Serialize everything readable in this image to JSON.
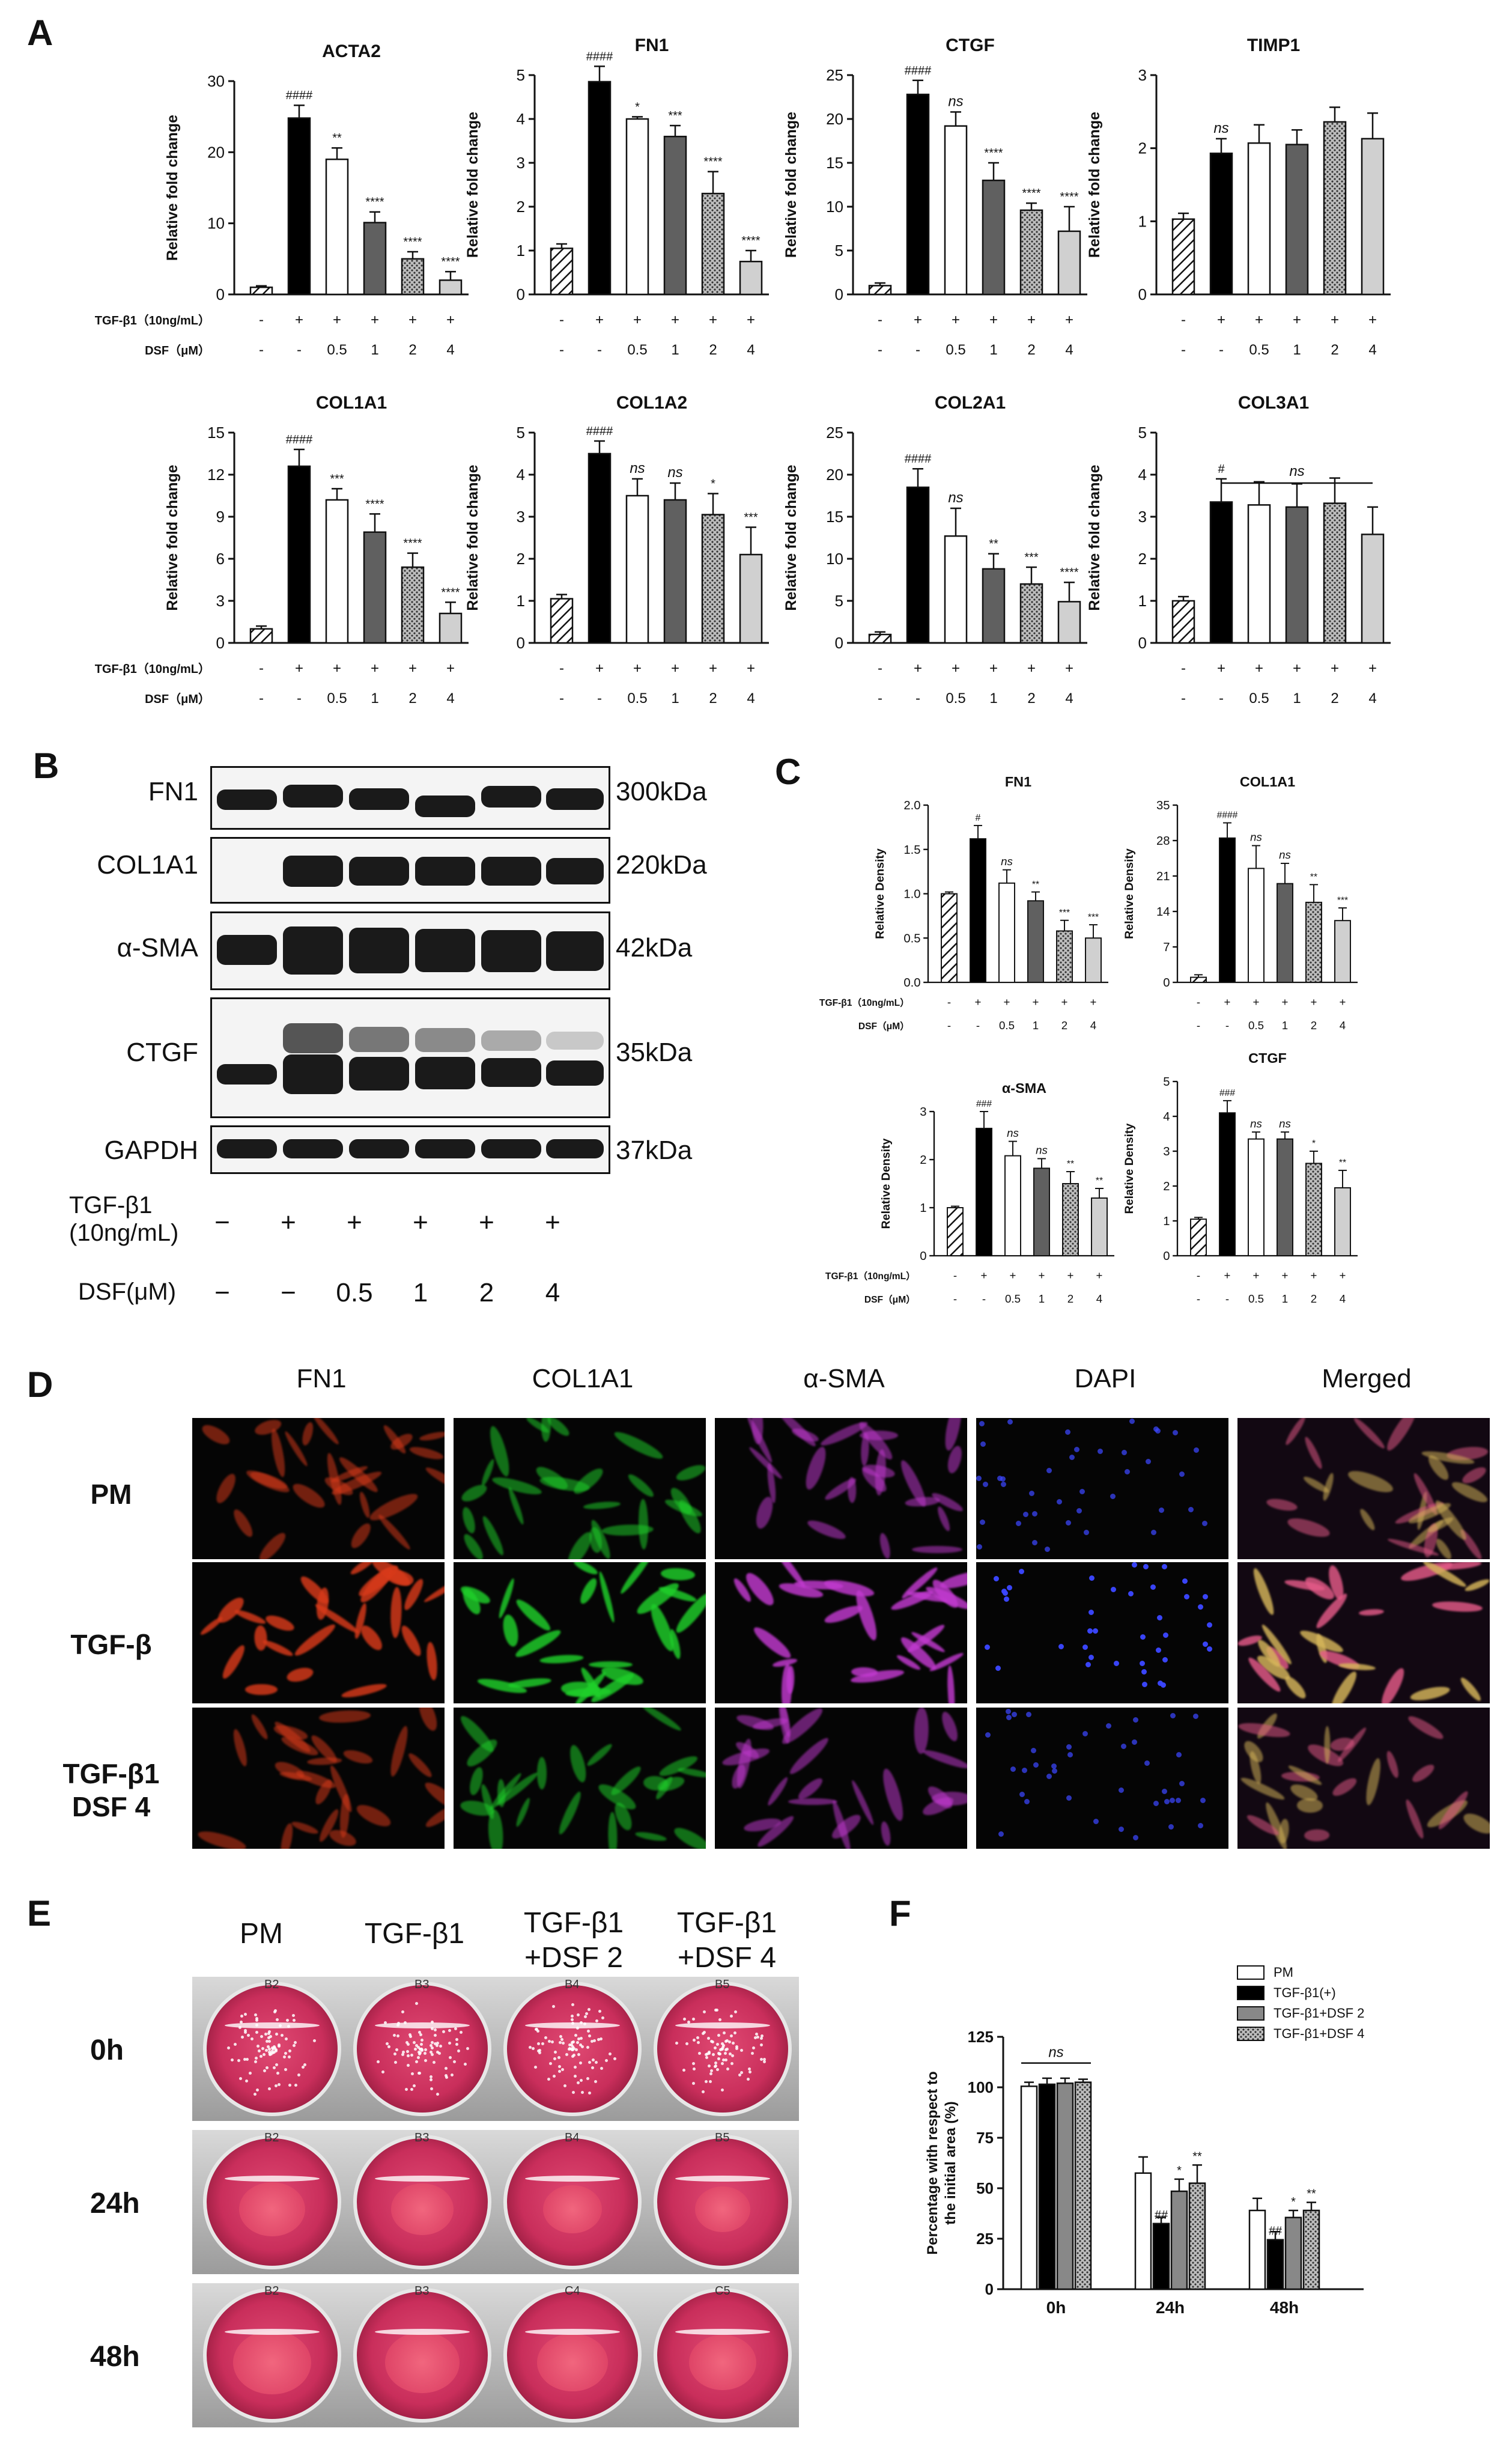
{
  "panel_letters": {
    "A": "A",
    "B": "B",
    "C": "C",
    "D": "D",
    "E": "E",
    "F": "F"
  },
  "colors": {
    "pm": "hatched-white",
    "tgf": "#000000",
    "dsf05": "#ffffff",
    "dsf1": "#606060",
    "dsf2": "dotted-grey",
    "dsf4": "#d0d0d0"
  },
  "treatment_rows_A": {
    "tgf_label": "TGF-β1（10ng/mL）",
    "dsf_label": "DSF（μM）",
    "tgf_values": [
      "-",
      "+",
      "+",
      "+",
      "+",
      "+"
    ],
    "dsf_values": [
      "-",
      "-",
      "0.5",
      "1",
      "2",
      "4"
    ]
  },
  "treatment_rows_C": {
    "tgf_label": "TGF-β1（10ng/mL）",
    "dsf_label": "DSF（μM）",
    "tgf_values": [
      "-",
      "+",
      "+",
      "+",
      "+",
      "+"
    ],
    "dsf_values": [
      "-",
      "-",
      "0.5",
      "1",
      "2",
      "4"
    ]
  },
  "chart_data": [
    {
      "panel": "A",
      "type": "bar",
      "title": "ACTA2",
      "ylabel": "Relative fold change",
      "ylim": [
        0,
        30
      ],
      "yticks": [
        0,
        10,
        20,
        30
      ],
      "values": [
        1.0,
        24.8,
        19.0,
        10.1,
        5.0,
        2.0
      ],
      "errors": [
        0.2,
        1.8,
        1.6,
        1.5,
        1.0,
        1.2
      ],
      "annotations": [
        "",
        "####",
        "**",
        "****",
        "****",
        "****"
      ]
    },
    {
      "panel": "A",
      "type": "bar",
      "title": "FN1",
      "ylabel": "Relative fold change",
      "ylim": [
        0,
        5
      ],
      "yticks": [
        0,
        1,
        2,
        3,
        4,
        5
      ],
      "values": [
        1.05,
        4.85,
        4.0,
        3.6,
        2.3,
        0.75
      ],
      "errors": [
        0.1,
        0.35,
        0.05,
        0.25,
        0.5,
        0.25
      ],
      "annotations": [
        "",
        "####",
        "*",
        "***",
        "****",
        "****"
      ]
    },
    {
      "panel": "A",
      "type": "bar",
      "title": "CTGF",
      "ylabel": "Relative fold change",
      "ylim": [
        0,
        25
      ],
      "yticks": [
        0,
        5,
        10,
        15,
        20,
        25
      ],
      "values": [
        1.0,
        22.8,
        19.2,
        13.0,
        9.6,
        7.2
      ],
      "errors": [
        0.3,
        1.6,
        1.6,
        2.0,
        0.8,
        2.8
      ],
      "annotations": [
        "",
        "####",
        "ns",
        "****",
        "****",
        "****"
      ]
    },
    {
      "panel": "A",
      "type": "bar",
      "title": "TIMP1",
      "ylabel": "Relative fold change",
      "ylim": [
        0,
        3
      ],
      "yticks": [
        0,
        1,
        2,
        3
      ],
      "values": [
        1.03,
        1.93,
        2.07,
        2.05,
        2.36,
        2.13
      ],
      "errors": [
        0.08,
        0.2,
        0.25,
        0.2,
        0.2,
        0.35
      ],
      "annotations": [
        "",
        "ns",
        "",
        "",
        "",
        ""
      ]
    },
    {
      "panel": "A",
      "type": "bar",
      "title": "COL1A1",
      "ylabel": "Relative fold change",
      "ylim": [
        0,
        15
      ],
      "yticks": [
        0,
        3,
        6,
        9,
        12,
        15
      ],
      "values": [
        1.0,
        12.6,
        10.2,
        7.9,
        5.4,
        2.1
      ],
      "errors": [
        0.2,
        1.2,
        0.8,
        1.3,
        1.0,
        0.8
      ],
      "annotations": [
        "",
        "####",
        "***",
        "****",
        "****",
        "****"
      ]
    },
    {
      "panel": "A",
      "type": "bar",
      "title": "COL1A2",
      "ylabel": "Relative fold change",
      "ylim": [
        0,
        5
      ],
      "yticks": [
        0,
        1,
        2,
        3,
        4,
        5
      ],
      "values": [
        1.05,
        4.5,
        3.5,
        3.4,
        3.05,
        2.1
      ],
      "errors": [
        0.1,
        0.3,
        0.4,
        0.4,
        0.5,
        0.65
      ],
      "annotations": [
        "",
        "####",
        "ns",
        "ns",
        "*",
        "***"
      ]
    },
    {
      "panel": "A",
      "type": "bar",
      "title": "COL2A1",
      "ylabel": "Relative fold change",
      "ylim": [
        0,
        25
      ],
      "yticks": [
        0,
        5,
        10,
        15,
        20,
        25
      ],
      "values": [
        1.0,
        18.5,
        12.7,
        8.8,
        7.0,
        4.9
      ],
      "errors": [
        0.3,
        2.2,
        3.3,
        1.8,
        2.0,
        2.3
      ],
      "annotations": [
        "",
        "####",
        "ns",
        "**",
        "***",
        "****"
      ]
    },
    {
      "panel": "A",
      "type": "bar",
      "title": "COL3A1",
      "ylabel": "Relative fold change",
      "ylim": [
        0,
        5
      ],
      "yticks": [
        0,
        1,
        2,
        3,
        4,
        5
      ],
      "values": [
        1.0,
        3.35,
        3.28,
        3.23,
        3.32,
        2.58
      ],
      "errors": [
        0.1,
        0.55,
        0.55,
        0.55,
        0.6,
        0.65
      ],
      "annotations": [
        "",
        "#",
        "",
        "",
        "",
        ""
      ],
      "bracket": "ns"
    },
    {
      "panel": "C",
      "type": "bar",
      "title": "FN1",
      "ylabel": "Relative Density",
      "ylim": [
        0,
        2.0
      ],
      "yticks": [
        0,
        0.5,
        1.0,
        1.5,
        2.0
      ],
      "ytick_labels": [
        "0.0",
        "0.5",
        "1.0",
        "1.5",
        "2.0"
      ],
      "values": [
        1.0,
        1.62,
        1.12,
        0.92,
        0.58,
        0.5
      ],
      "errors": [
        0.02,
        0.15,
        0.15,
        0.1,
        0.12,
        0.15
      ],
      "annotations": [
        "",
        "#",
        "ns",
        "**",
        "***",
        "***"
      ]
    },
    {
      "panel": "C",
      "type": "bar",
      "title": "COL1A1",
      "ylabel": "Relative Density",
      "ylim": [
        0,
        35
      ],
      "yticks": [
        0,
        7,
        14,
        21,
        28,
        35
      ],
      "values": [
        1.0,
        28.5,
        22.5,
        19.5,
        15.8,
        12.2
      ],
      "errors": [
        0.5,
        3.0,
        4.5,
        4.0,
        3.5,
        2.5
      ],
      "annotations": [
        "",
        "####",
        "ns",
        "ns",
        "**",
        "***"
      ]
    },
    {
      "panel": "C",
      "type": "bar",
      "title": "α-SMA",
      "ylabel": "Relative Density",
      "ylim": [
        0,
        3
      ],
      "yticks": [
        0,
        1,
        2,
        3
      ],
      "values": [
        1.0,
        2.65,
        2.08,
        1.82,
        1.5,
        1.2
      ],
      "errors": [
        0.03,
        0.35,
        0.3,
        0.2,
        0.25,
        0.2
      ],
      "annotations": [
        "",
        "###",
        "ns",
        "ns",
        "**",
        "**"
      ]
    },
    {
      "panel": "C",
      "type": "bar",
      "title": "CTGF",
      "ylabel": "Relative Density",
      "ylim": [
        0,
        5
      ],
      "yticks": [
        0,
        1,
        2,
        3,
        4,
        5
      ],
      "values": [
        1.05,
        4.1,
        3.35,
        3.35,
        2.65,
        1.95
      ],
      "errors": [
        0.05,
        0.35,
        0.2,
        0.2,
        0.35,
        0.5
      ],
      "annotations": [
        "",
        "###",
        "ns",
        "ns",
        "*",
        "**"
      ]
    },
    {
      "panel": "F",
      "type": "bar",
      "ylabel": "Percentage with respect to the initial area (%)",
      "ylim": [
        0,
        125
      ],
      "yticks": [
        0,
        25,
        50,
        75,
        100,
        125
      ],
      "categories": [
        "0h",
        "24h",
        "48h"
      ],
      "series": [
        {
          "name": "PM",
          "values": [
            100.5,
            57.5,
            39.0
          ],
          "errors": [
            2.0,
            8.0,
            6.0
          ],
          "annotations": [
            "",
            "",
            ""
          ]
        },
        {
          "name": "TGF-β1(+)",
          "values": [
            101.5,
            32.5,
            24.5
          ],
          "errors": [
            3.0,
            3.0,
            4.0
          ],
          "annotations": [
            "",
            "##",
            "##"
          ]
        },
        {
          "name": "TGF-β1+DSF 2",
          "values": [
            102.0,
            48.5,
            35.5
          ],
          "errors": [
            2.5,
            6.0,
            3.5
          ],
          "annotations": [
            "",
            "*",
            "*"
          ]
        },
        {
          "name": "TGF-β1+DSF 4",
          "values": [
            102.5,
            52.5,
            39.0
          ],
          "errors": [
            1.5,
            9.0,
            4.0
          ],
          "annotations": [
            "",
            "**",
            "**"
          ]
        }
      ],
      "bracket": "ns"
    }
  ],
  "panelB": {
    "rows": [
      {
        "name": "FN1",
        "size": "300kDa"
      },
      {
        "name": "COL1A1",
        "size": "220kDa"
      },
      {
        "name": "α-SMA",
        "size": "42kDa"
      },
      {
        "name": "CTGF",
        "size": "35kDa"
      },
      {
        "name": "GAPDH",
        "size": "37kDa"
      }
    ],
    "tgf_label": "TGF-β1",
    "tgf_label_sub": "(10ng/mL)",
    "dsf_label": "DSF(μM)",
    "tgf_values": [
      "−",
      "+",
      "+",
      "+",
      "+",
      "+"
    ],
    "dsf_values": [
      "−",
      "−",
      "0.5",
      "1",
      "2",
      "4"
    ]
  },
  "panelD": {
    "columns": [
      "FN1",
      "COL1A1",
      "α-SMA",
      "DAPI",
      "Merged"
    ],
    "rows": [
      "PM",
      "TGF-β",
      "TGF-β1",
      "DSF 4"
    ]
  },
  "panelE": {
    "columns": [
      "PM",
      "TGF-β1",
      "TGF-β1",
      "+DSF 2",
      "TGF-β1",
      "+DSF 4"
    ],
    "rows": [
      "0h",
      "24h",
      "48h"
    ],
    "well_tags": [
      "B2",
      "B3",
      "B4",
      "B5",
      "B2",
      "B3",
      "B4",
      "B5",
      "B2",
      "B3",
      "C4",
      "C5"
    ]
  }
}
